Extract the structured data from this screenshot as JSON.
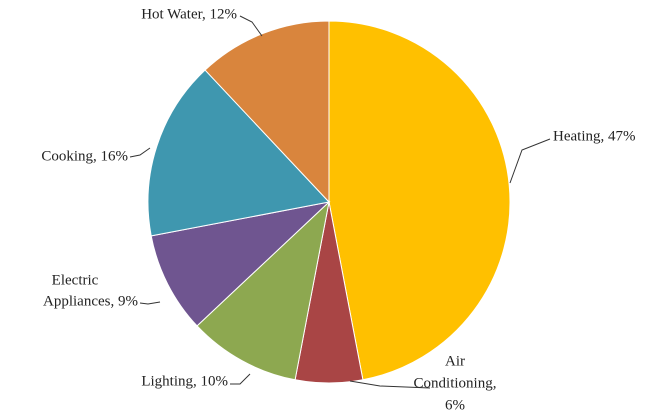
{
  "chart_data": {
    "type": "pie",
    "labels": [
      [
        "Heating, 47%"
      ],
      [
        "Air",
        "Conditioning,",
        "6%"
      ],
      [
        "Lighting, 10%"
      ],
      [
        "Electric",
        "Appliances, 9%"
      ],
      [
        "Cooking, 16%"
      ],
      [
        "Hot Water, 12%"
      ]
    ],
    "values": [
      47,
      6,
      10,
      9,
      16,
      12
    ],
    "colors": [
      "#FFC000",
      "#A94545",
      "#8DA850",
      "#6F5590",
      "#3F97AF",
      "#D9853D"
    ]
  }
}
